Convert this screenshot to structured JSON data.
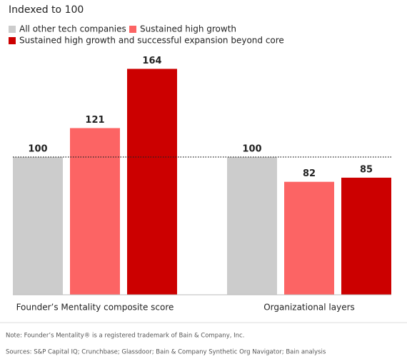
{
  "chart_data": {
    "type": "bar",
    "subtitle": "Indexed to 100",
    "categories": [
      "Founder’s Mentality composite score",
      "Organizational layers"
    ],
    "series": [
      {
        "name": "All other tech companies",
        "color": "#cccccc",
        "values": [
          100,
          100
        ]
      },
      {
        "name": "Sustained high growth",
        "color": "#fc6464",
        "values": [
          121,
          82
        ]
      },
      {
        "name": "Sustained high growth and successful expansion beyond core",
        "color": "#cc0000",
        "values": [
          164,
          85
        ]
      }
    ],
    "ylim": [
      0,
      200
    ],
    "reference_line": 100,
    "notes": [
      "Note: Founder’s Mentality® is a registered trademark of Bain & Company, Inc.",
      "Sources: S&P Capital IQ; Crunchbase; Glassdoor; Bain & Company Synthetic Org Navigator; Bain analysis"
    ]
  }
}
